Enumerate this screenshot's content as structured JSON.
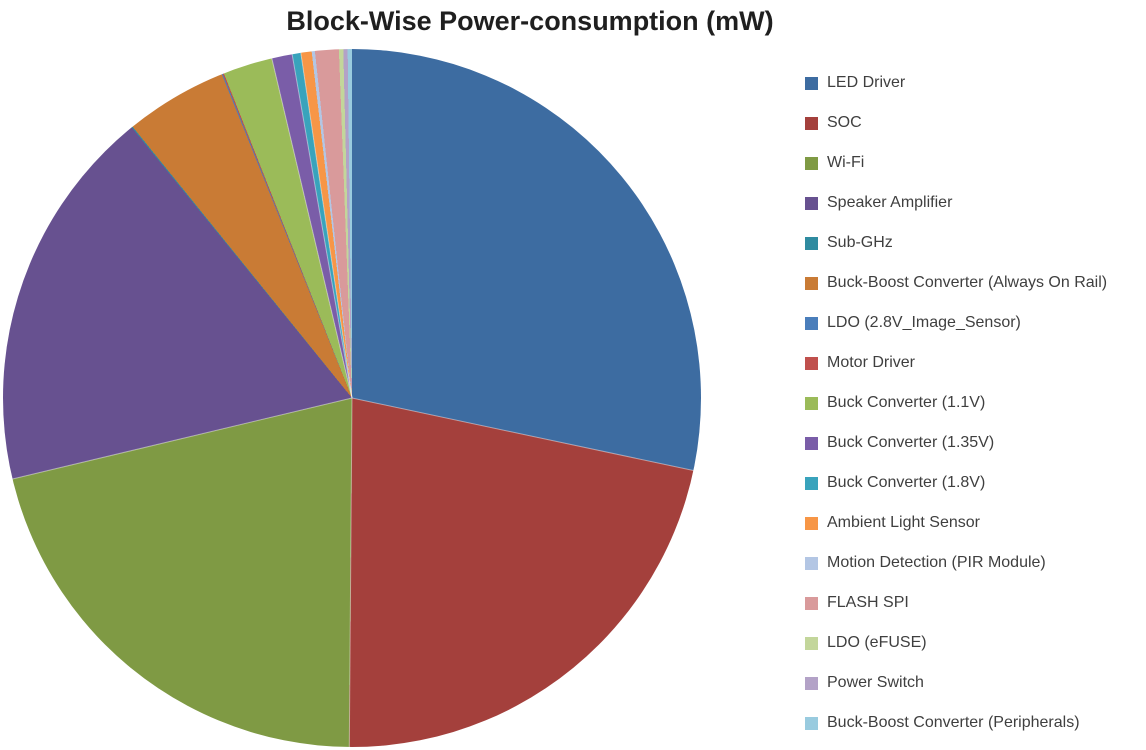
{
  "page": {
    "background_color": "#FFFFFF",
    "title_color": "#1F1F1F",
    "legend_text_color": "#3F3F3F"
  },
  "chart_data": {
    "type": "pie",
    "title": "Block-Wise Power-consumption (mW)",
    "unit": "mW",
    "note": "No numeric data labels are shown in the image; share_percent values are estimated from slice arc angles. Several legend entries (Sub-GHz, LDO (2.8V_Image_Sensor), Motor Driver, LDO (eFUSE), Power Switch, Buck-Boost Converter (Peripherals)) have near-zero slices.",
    "start_angle_deg": 0,
    "direction": "clockwise",
    "legend_position": "right",
    "segments": [
      {
        "label": "LED Driver",
        "share_percent": 28.4,
        "color": "#3D6CA1"
      },
      {
        "label": "SOC",
        "share_percent": 21.85,
        "color": "#A4403C"
      },
      {
        "label": "Wi-Fi",
        "share_percent": 21.2,
        "color": "#7F9A44"
      },
      {
        "label": "Speaker Amplifier",
        "share_percent": 17.9,
        "color": "#675190"
      },
      {
        "label": "Sub-GHz",
        "share_percent": 0.05,
        "color": "#2F8BA0"
      },
      {
        "label": "Buck-Boost Converter (Always On Rail)",
        "share_percent": 4.75,
        "color": "#C97B35"
      },
      {
        "label": "LDO (2.8V_Image_Sensor)",
        "share_percent": 0.05,
        "color": "#4A7EBB"
      },
      {
        "label": "Motor Driver",
        "share_percent": 0.05,
        "color": "#C0504D"
      },
      {
        "label": "Buck Converter (1.1V)",
        "share_percent": 2.3,
        "color": "#9BBB59"
      },
      {
        "label": "Buck Converter (1.35V)",
        "share_percent": 0.95,
        "color": "#7A5DA8"
      },
      {
        "label": "Buck Converter (1.8V)",
        "share_percent": 0.4,
        "color": "#39A3BC"
      },
      {
        "label": "Ambient Light Sensor",
        "share_percent": 0.5,
        "color": "#F79646"
      },
      {
        "label": "Motion Detection (PIR Module)",
        "share_percent": 0.15,
        "color": "#B3C6E4"
      },
      {
        "label": "FLASH SPI",
        "share_percent": 1.1,
        "color": "#D99A9B"
      },
      {
        "label": "LDO (eFUSE)",
        "share_percent": 0.2,
        "color": "#C3D69B"
      },
      {
        "label": "Power Switch",
        "share_percent": 0.2,
        "color": "#B3A2C7"
      },
      {
        "label": "Buck-Boost Converter (Peripherals)",
        "share_percent": 0.2,
        "color": "#99CBDF"
      }
    ]
  }
}
